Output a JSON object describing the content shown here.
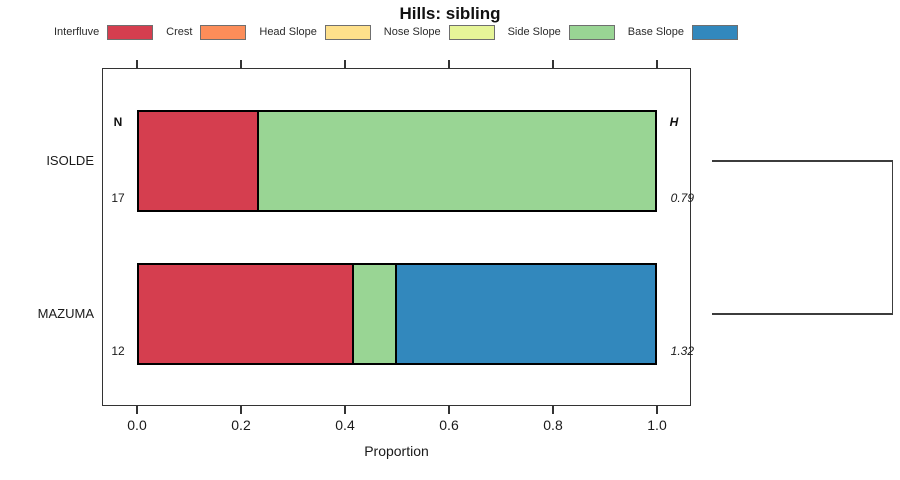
{
  "chart_data": {
    "type": "bar",
    "orientation": "horizontal",
    "stacked": true,
    "title": "Hills: sibling",
    "xlabel": "Proportion",
    "xlim": [
      0,
      1
    ],
    "grid": false,
    "x_ticks": [
      {
        "value": 0.0,
        "label": "0.0"
      },
      {
        "value": 0.2,
        "label": "0.2"
      },
      {
        "value": 0.4,
        "label": "0.4"
      },
      {
        "value": 0.6,
        "label": "0.6"
      },
      {
        "value": 0.8,
        "label": "0.8"
      },
      {
        "value": 1.0,
        "label": "1.0"
      }
    ],
    "legend": [
      {
        "label": "Interfluve",
        "color": "#D53E4F"
      },
      {
        "label": "Crest",
        "color": "#FC8D59"
      },
      {
        "label": "Head Slope",
        "color": "#FEE08B"
      },
      {
        "label": "Nose Slope",
        "color": "#E6F598"
      },
      {
        "label": "Side Slope",
        "color": "#99D594"
      },
      {
        "label": "Base Slope",
        "color": "#3288BD"
      }
    ],
    "columns": {
      "n_header": "N",
      "h_header": "H"
    },
    "rows": [
      {
        "label": "ISOLDE",
        "n": "17",
        "h": "0.79",
        "segments": [
          {
            "category": "Interfluve",
            "proportion": 0.2353
          },
          {
            "category": "Side Slope",
            "proportion": 0.7647
          }
        ]
      },
      {
        "label": "MAZUMA",
        "n": "12",
        "h": "1.32",
        "segments": [
          {
            "category": "Interfluve",
            "proportion": 0.4167
          },
          {
            "category": "Side Slope",
            "proportion": 0.0833
          },
          {
            "category": "Base Slope",
            "proportion": 0.5
          }
        ]
      }
    ],
    "dendrogram": {
      "clusters": [
        "ISOLDE",
        "MAZUMA"
      ],
      "joined": true
    }
  }
}
